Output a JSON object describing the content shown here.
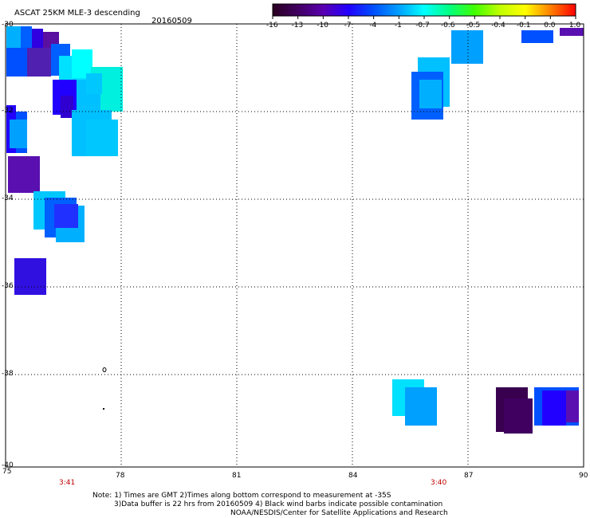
{
  "title": "ASCAT 25KM MLE-3 descending",
  "date": "20160509",
  "colorbar": {
    "tick_labels": [
      "-16",
      "-13",
      "-10",
      "-7",
      "-4",
      "-1",
      "-0.7",
      "-0.6",
      "-0.5",
      "-0.4",
      "-0.1",
      "0.0",
      "1.0"
    ],
    "colors": [
      "#2a0020",
      "#400060",
      "#5a00b0",
      "#2200ff",
      "#0050ff",
      "#00a0ff",
      "#00ffff",
      "#00ff80",
      "#40ff00",
      "#c0ff00",
      "#ffff00",
      "#ff8000",
      "#ff0000"
    ]
  },
  "axes": {
    "x_ticks": [
      "75",
      "78",
      "81",
      "84",
      "87",
      "90"
    ],
    "y_ticks": [
      "-30",
      "-32",
      "-34",
      "-36",
      "-38",
      "-40"
    ],
    "x_range": [
      75,
      90
    ],
    "y_range": [
      -40,
      -30
    ],
    "grid": "dotted"
  },
  "times": [
    "3:41",
    "3:40"
  ],
  "notes": [
    "Note: 1) Times are GMT 2)Times along bottom correspond to measurement at -35S",
    "3)Data buffer is 22 hrs from 20160509 4) Black wind barbs indicate possible contamination",
    "NOAA/NESDIS/Center for Satellite Applications and Research"
  ]
}
